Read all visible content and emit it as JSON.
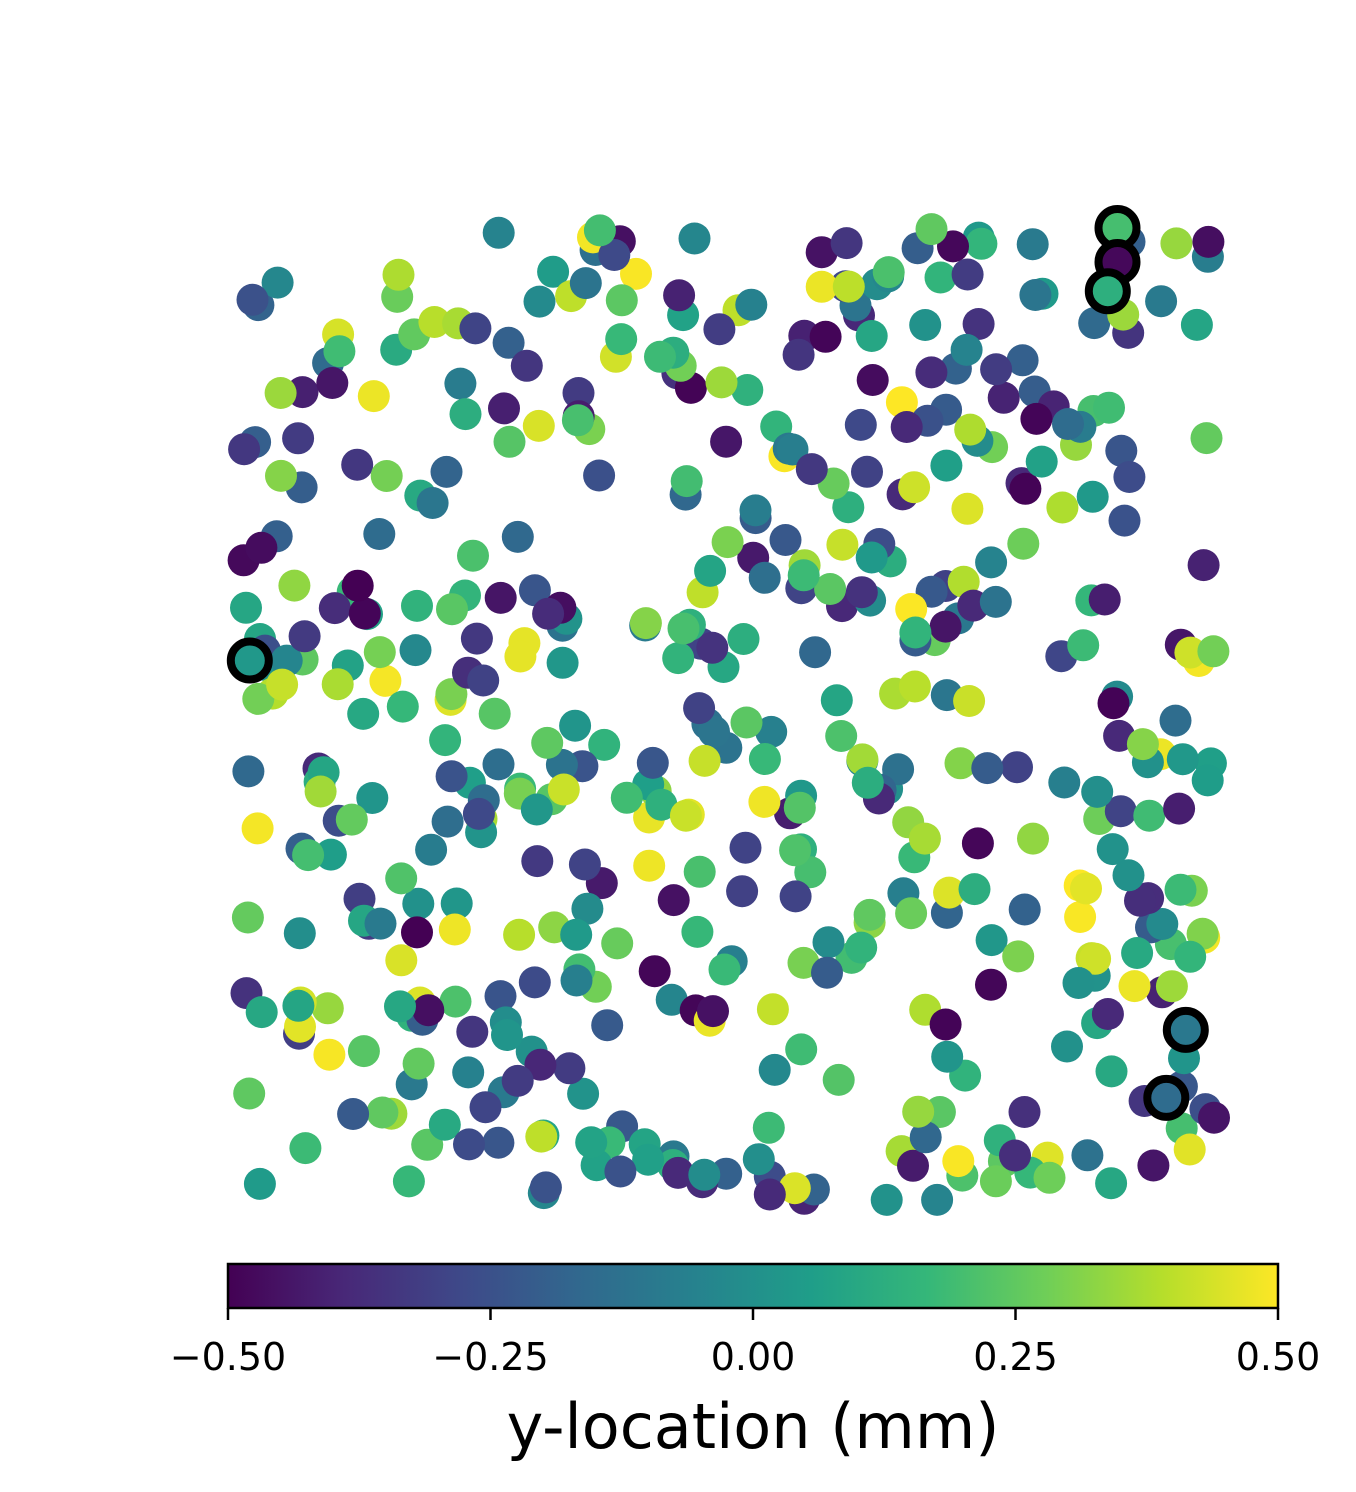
{
  "chart_data": {
    "type": "scatter",
    "title": "",
    "axes_visible": false,
    "colormap": "viridis",
    "colormap_stops": [
      "#440154",
      "#482878",
      "#3e4989",
      "#31688e",
      "#26828e",
      "#1f9e89",
      "#35b779",
      "#6ece58",
      "#b5de2b",
      "#fde725"
    ],
    "color_value": "y-location (mm)",
    "colorbar": {
      "label": "y-location (mm)",
      "range": [
        -0.5,
        0.5
      ],
      "ticks": [
        -0.5,
        -0.25,
        0.0,
        0.25,
        0.5
      ],
      "tick_labels": [
        "−0.50",
        "−0.25",
        "0.00",
        "0.25",
        "0.50"
      ],
      "orientation": "horizontal",
      "placement": "bottom"
    },
    "x_range": [
      -0.5,
      0.5
    ],
    "y_range": [
      -0.5,
      0.5
    ],
    "highlighted_points": [
      {
        "x": 0.4,
        "y": 0.5,
        "c": 0.2
      },
      {
        "x": 0.4,
        "y": 0.465,
        "c": -0.48
      },
      {
        "x": 0.39,
        "y": 0.435,
        "c": 0.13
      },
      {
        "x": -0.49,
        "y": 0.055,
        "c": 0.03
      },
      {
        "x": 0.47,
        "y": -0.325,
        "c": -0.1
      },
      {
        "x": 0.45,
        "y": -0.395,
        "c": -0.15
      }
    ],
    "n_points": 520,
    "note_points": "Dense uniform random scatter; individual point values are not labeled"
  }
}
